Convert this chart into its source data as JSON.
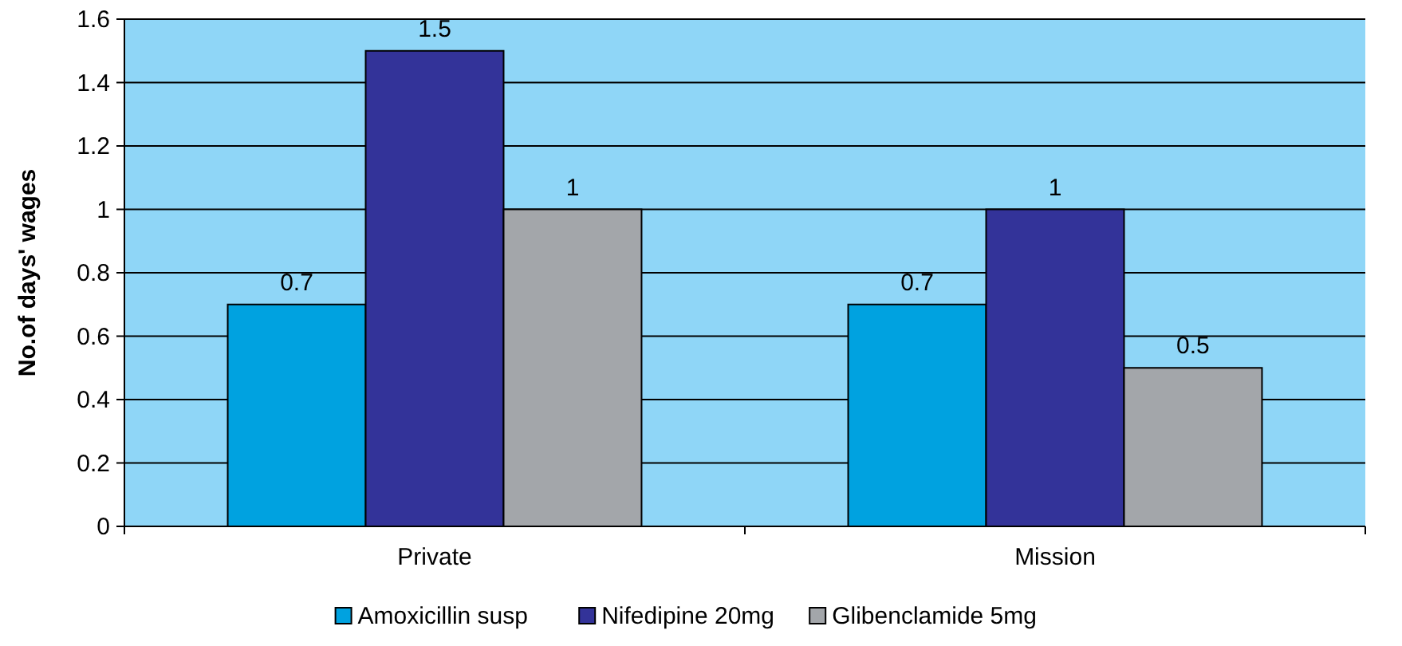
{
  "chart_data": {
    "type": "bar",
    "ylabel": "No.of days' wages",
    "categories": [
      "Private",
      "Mission"
    ],
    "series": [
      {
        "name": "Amoxicillin susp",
        "color": "#00a2e0",
        "values": [
          0.7,
          0.7
        ]
      },
      {
        "name": "Nifedipine 20mg",
        "color": "#333399",
        "values": [
          1.5,
          1
        ]
      },
      {
        "name": "Glibenclamide 5mg",
        "color": "#a3a6aa",
        "values": [
          1,
          0.5
        ]
      }
    ],
    "ylim": [
      0,
      1.6
    ],
    "yticks": [
      0,
      {
        "value": 0.2,
        "label": "0.2"
      },
      {
        "value": 0.4,
        "label": "0.4"
      },
      {
        "value": 0.6,
        "label": "0.6"
      },
      {
        "value": 0.8,
        "label": "0.8"
      },
      1,
      {
        "value": 1.2,
        "label": "1.2"
      },
      {
        "value": 1.4,
        "label": "1.4"
      },
      {
        "value": 1.6,
        "label": "1.6"
      }
    ],
    "grid": "y",
    "legend": "bottom",
    "data_labels": true
  }
}
